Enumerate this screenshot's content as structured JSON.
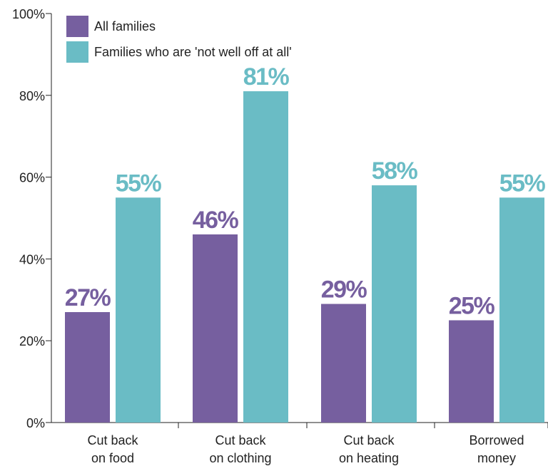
{
  "colors": {
    "all_families": "#765f9f",
    "not_well_off": "#6abcc5",
    "axis": "#222222"
  },
  "chart_data": {
    "type": "bar",
    "categories": [
      [
        "Cut back",
        "on food"
      ],
      [
        "Cut back",
        "on clothing"
      ],
      [
        "Cut back",
        "on heating"
      ],
      [
        "Borrowed",
        "money"
      ]
    ],
    "series": [
      {
        "name": "All families",
        "values": [
          27,
          46,
          29,
          25
        ],
        "labels": [
          "27%",
          "46%",
          "29%",
          "25%"
        ]
      },
      {
        "name": "Families who are 'not well off at all'",
        "values": [
          55,
          81,
          58,
          55
        ],
        "labels": [
          "55%",
          "81%",
          "58%",
          "55%"
        ]
      }
    ],
    "yticks": [
      "0%",
      "20%",
      "40%",
      "60%",
      "80%",
      "100%"
    ],
    "ylim": [
      0,
      100
    ],
    "legend_position": "top-left",
    "grid": false
  }
}
